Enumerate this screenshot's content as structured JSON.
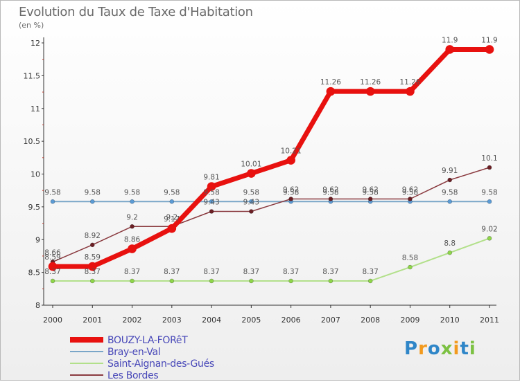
{
  "title": "Evolution du Taux de Taxe d'Habitation",
  "unit_label": "(en %)",
  "logo_text": "Proxiti",
  "chart_data": {
    "type": "line",
    "title": "Evolution du Taux de Taxe d'Habitation",
    "ylabel": "(en %)",
    "x": [
      "2000",
      "2001",
      "2002",
      "2003",
      "2004",
      "2005",
      "2006",
      "2007",
      "2008",
      "2009",
      "2010",
      "2011"
    ],
    "ylim": [
      8,
      12
    ],
    "yticks": [
      8,
      8.5,
      9,
      9.5,
      10,
      10.5,
      11,
      11.5,
      12
    ],
    "ytick_labels": [
      "8",
      "8.5",
      "9",
      "9.5",
      "10",
      "10.5",
      "11",
      "11.5",
      "12"
    ],
    "grid": false,
    "legend_position": "bottom-left",
    "series": [
      {
        "name": "Bray-en-Val",
        "color": "#5b9bd5",
        "line_color": "#7aa6c8",
        "width": 2,
        "values": [
          9.58,
          9.58,
          9.58,
          9.58,
          9.58,
          9.58,
          9.58,
          9.58,
          9.58,
          9.58,
          9.58,
          9.58
        ],
        "labels": [
          "9.58",
          "9.58",
          "9.58",
          "9.58",
          "9.58",
          "9.58",
          "9.58",
          "9.58",
          "9.58",
          "9.58",
          "9.58",
          "9.58"
        ]
      },
      {
        "name": "Saint-Aignan-des-Gués",
        "color": "#8fd64a",
        "line_color": "#b2e08a",
        "width": 2,
        "values": [
          8.37,
          8.37,
          8.37,
          8.37,
          8.37,
          8.37,
          8.37,
          8.37,
          8.37,
          8.58,
          8.8,
          9.02
        ],
        "labels": [
          "8.37",
          "8.37",
          "8.37",
          "8.37",
          "8.37",
          "8.37",
          "8.37",
          "8.37",
          "8.37",
          "8.58",
          "8.8",
          "9.02"
        ]
      },
      {
        "name": "Les Bordes",
        "color": "#6b1f24",
        "line_color": "#8a3a3f",
        "width": 1.5,
        "values": [
          8.66,
          8.92,
          9.2,
          9.2,
          9.43,
          9.43,
          9.62,
          9.62,
          9.62,
          9.62,
          9.91,
          10.1
        ],
        "labels": [
          "8.66",
          "8.92",
          "9.2",
          "9.2",
          "9.43",
          "9.43",
          "9.62",
          "9.62",
          "9.62",
          "9.62",
          "9.91",
          "10.1"
        ]
      },
      {
        "name": "BOUZY-LA-FORêT",
        "color": "#e8110f",
        "line_color": "#e8110f",
        "width": 7,
        "values": [
          8.59,
          8.59,
          8.86,
          9.17,
          9.81,
          10.01,
          10.21,
          11.26,
          11.26,
          11.26,
          11.9,
          11.9
        ],
        "labels": [
          "8.59",
          "8.59",
          "8.86",
          "9.17",
          "9.81",
          "10.01",
          "10.21",
          "11.26",
          "11.26",
          "11.26",
          "11.9",
          "11.9"
        ]
      }
    ],
    "legend_order": [
      "BOUZY-LA-FORêT",
      "Bray-en-Val",
      "Saint-Aignan-des-Gués",
      "Les Bordes"
    ]
  }
}
